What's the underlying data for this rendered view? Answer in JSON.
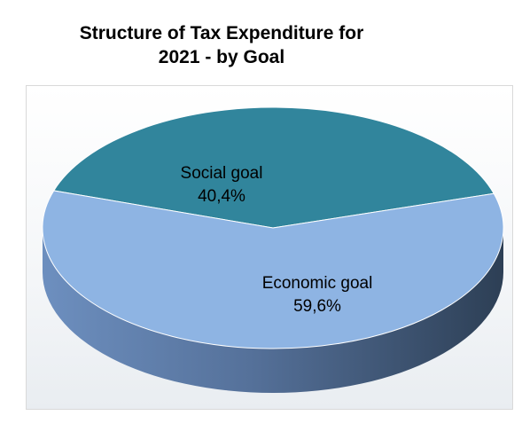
{
  "chart_data": {
    "type": "pie",
    "title_lines": [
      "Structure of Tax Expenditure for",
      "2021 - by Goal"
    ],
    "slices": [
      {
        "label": "Social goal",
        "value": 40.4,
        "value_label": "40,4%",
        "color": "#31859c"
      },
      {
        "label": "Economic goal",
        "value": 59.6,
        "value_label": "59,6%",
        "color": "#8eb4e3"
      }
    ],
    "grid": false,
    "legend": "none"
  }
}
